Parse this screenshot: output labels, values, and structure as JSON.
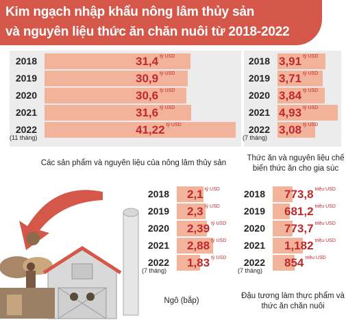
{
  "title_line1": "Kim ngạch nhập khẩu nông lâm thủy sản",
  "title_line2": "và nguyên liệu thức ăn chăn nuôi từ 2018-2022",
  "colors": {
    "banner": "#d4574a",
    "bar": "#f2b39a",
    "value": "#c0282c",
    "panel": "#ececec"
  },
  "chart_data": [
    {
      "type": "bar",
      "categories": [
        "2018",
        "2019",
        "2020",
        "2021",
        "2022"
      ],
      "category_notes": [
        "",
        "",
        "",
        "",
        "(11 tháng)"
      ],
      "values": [
        31.4,
        30.9,
        30.6,
        31.6,
        41.22
      ],
      "value_labels": [
        "31,4",
        "30,9",
        "30,6",
        "31,6",
        "41,22"
      ],
      "unit": "tỷ USD",
      "title": "Các sản phẩm và nguyên liệu của nông lâm thủy sản"
    },
    {
      "type": "bar",
      "categories": [
        "2018",
        "2019",
        "2020",
        "2021",
        "2022"
      ],
      "category_notes": [
        "",
        "",
        "",
        "",
        "(7 tháng)"
      ],
      "values": [
        3.91,
        3.71,
        3.84,
        4.93,
        3.08
      ],
      "value_labels": [
        "3,91",
        "3,71",
        "3,84",
        "4,93",
        "3,08"
      ],
      "unit": "tỷ USD",
      "title": "Thức ăn và nguyên liệu chế biến thức ăn cho gia súc"
    },
    {
      "type": "bar",
      "categories": [
        "2018",
        "2019",
        "2020",
        "2021",
        "2022"
      ],
      "category_notes": [
        "",
        "",
        "",
        "",
        "(7 tháng)"
      ],
      "values": [
        2.1,
        2.3,
        2.39,
        2.88,
        1.83
      ],
      "value_labels": [
        "2,1",
        "2,3",
        "2,39",
        "2,88",
        "1,83"
      ],
      "unit": "tỷ USD",
      "title": "Ngô (bắp)"
    },
    {
      "type": "bar",
      "categories": [
        "2018",
        "2019",
        "2020",
        "2021",
        "2022"
      ],
      "category_notes": [
        "",
        "",
        "",
        "",
        "(7 tháng)"
      ],
      "values": [
        773.8,
        681.2,
        773.7,
        1182,
        854
      ],
      "value_labels": [
        "773,8",
        "681,2",
        "773,7",
        "1,182",
        "854"
      ],
      "unit": "triệu USD",
      "title": "Đậu tương làm thực phẩm và thức ăn chăn nuôi"
    }
  ]
}
